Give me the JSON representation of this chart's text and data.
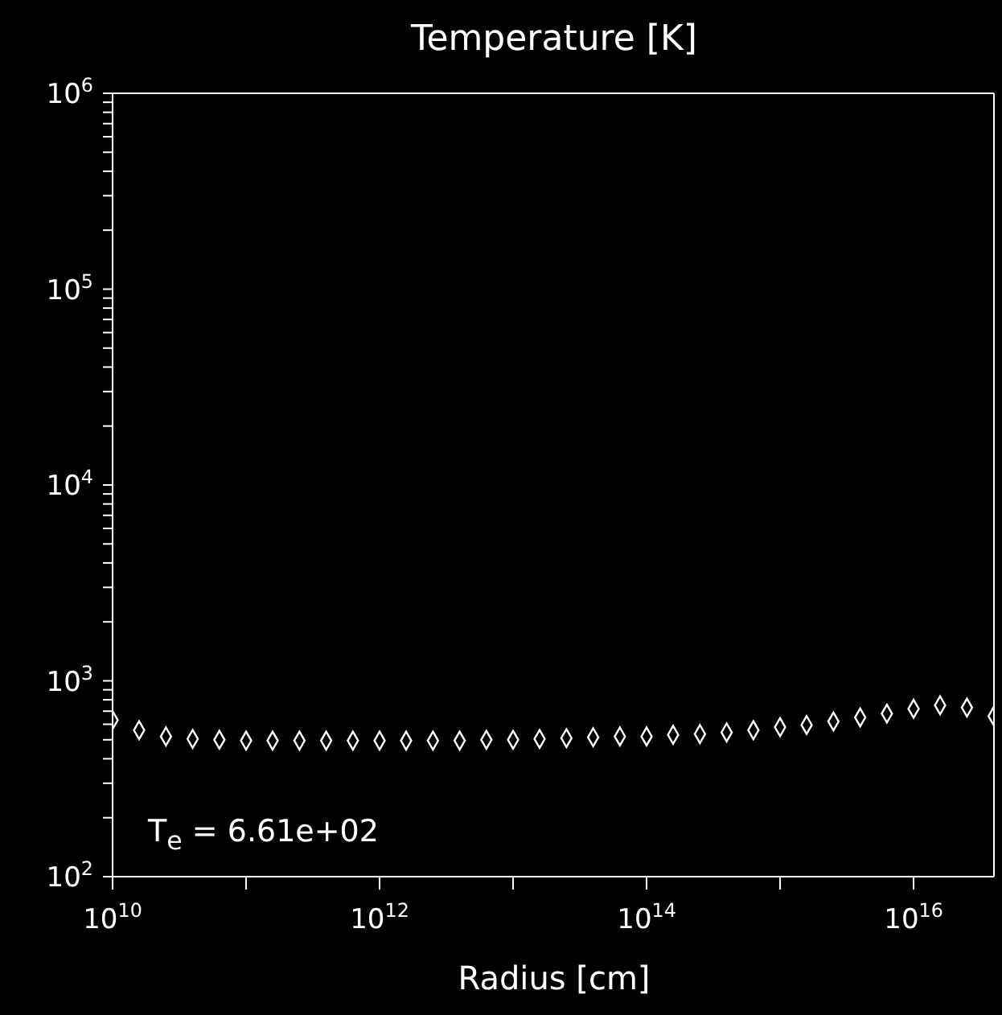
{
  "chart_data": {
    "type": "scatter",
    "title": "Temperature [K]",
    "xlabel": "Radius [cm]",
    "log": "xy",
    "marker": "diamond",
    "annotations": [
      "T$_{e}$ = 6.61e+02"
    ],
    "xlim": [
      10000000000.0,
      4e+16
    ],
    "xticks": [
      {
        "value": 10000000000.0,
        "label": "10$^{10}$"
      },
      {
        "value": 100000000000.0,
        "label": null
      },
      {
        "value": 1000000000000.0,
        "label": "10$^{12}$"
      },
      {
        "value": 10000000000000.0,
        "label": null
      },
      {
        "value": 100000000000000.0,
        "label": "10$^{14}$"
      },
      {
        "value": 1000000000000000.0,
        "label": null
      },
      {
        "value": 1e+16,
        "label": "10$^{16}$"
      }
    ],
    "ylim": [
      100,
      1000000
    ],
    "yticks": [
      {
        "value": 100,
        "label": "10$^{2}$"
      },
      {
        "value": 200,
        "label": null
      },
      {
        "value": 300,
        "label": null
      },
      {
        "value": 400,
        "label": null
      },
      {
        "value": 500,
        "label": null
      },
      {
        "value": 600,
        "label": null
      },
      {
        "value": 700,
        "label": null
      },
      {
        "value": 800,
        "label": null
      },
      {
        "value": 900,
        "label": null
      },
      {
        "value": 1000,
        "label": "10$^{3}$"
      },
      {
        "value": 2000,
        "label": null
      },
      {
        "value": 3000,
        "label": null
      },
      {
        "value": 4000,
        "label": null
      },
      {
        "value": 5000,
        "label": null
      },
      {
        "value": 6000,
        "label": null
      },
      {
        "value": 7000,
        "label": null
      },
      {
        "value": 8000,
        "label": null
      },
      {
        "value": 9000,
        "label": null
      },
      {
        "value": 10000,
        "label": "10$^{4}$"
      },
      {
        "value": 20000,
        "label": null
      },
      {
        "value": 30000,
        "label": null
      },
      {
        "value": 40000,
        "label": null
      },
      {
        "value": 50000,
        "label": null
      },
      {
        "value": 60000,
        "label": null
      },
      {
        "value": 70000,
        "label": null
      },
      {
        "value": 80000,
        "label": null
      },
      {
        "value": 90000,
        "label": null
      },
      {
        "value": 100000,
        "label": "10$^{5}$"
      },
      {
        "value": 200000,
        "label": null
      },
      {
        "value": 300000,
        "label": null
      },
      {
        "value": 400000,
        "label": null
      },
      {
        "value": 500000,
        "label": null
      },
      {
        "value": 600000,
        "label": null
      },
      {
        "value": 700000,
        "label": null
      },
      {
        "value": 800000,
        "label": null
      },
      {
        "value": 900000,
        "label": null
      },
      {
        "value": 1000000,
        "label": "10$^{6}$"
      }
    ],
    "x": [
      10000000000.0,
      15800000000.0,
      25100000000.0,
      39800000000.0,
      63100000000.0,
      100000000000.0,
      158000000000.0,
      251000000000.0,
      398000000000.0,
      631000000000.0,
      1000000000000.0,
      1580000000000.0,
      2510000000000.0,
      3980000000000.0,
      6310000000000.0,
      10000000000000.0,
      15800000000000.0,
      25100000000000.0,
      39800000000000.0,
      63100000000000.0,
      100000000000000.0,
      158000000000000.0,
      251000000000000.0,
      398000000000000.0,
      631000000000000.0,
      1000000000000000.0,
      1580000000000000.0,
      2510000000000000.0,
      3980000000000000.0,
      6310000000000000.0,
      1e+16,
      1.58e+16,
      2.51e+16,
      3.98e+16
    ],
    "series": [
      {
        "color": "#ffffff",
        "values": [
          630,
          560,
          520,
          505,
          500,
          495,
          495,
          495,
          495,
          495,
          495,
          495,
          495,
          495,
          500,
          500,
          505,
          510,
          515,
          520,
          520,
          530,
          535,
          545,
          560,
          580,
          595,
          620,
          650,
          680,
          720,
          750,
          730,
          660
        ]
      }
    ]
  }
}
